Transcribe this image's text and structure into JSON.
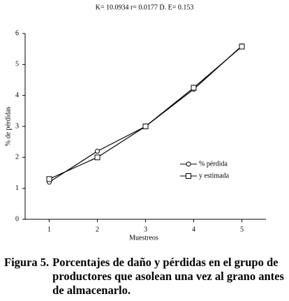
{
  "chart_data": {
    "type": "line",
    "subtitle": "K= 10.0934 r= 0.0177 D. E= 0.153",
    "x_label": "Muestreos",
    "y_label": "% de pérdidas",
    "x": [
      1,
      2,
      3,
      4,
      5
    ],
    "xlim": [
      0.5,
      5.5
    ],
    "xticks": [
      1,
      2,
      3,
      4,
      5
    ],
    "ylim": [
      0,
      6
    ],
    "yticks": [
      0,
      1,
      2,
      3,
      4,
      5,
      6
    ],
    "series": [
      {
        "name": "% pérdida",
        "color": "#000000",
        "marker": "circle",
        "values": [
          1.2,
          2.2,
          3.0,
          4.2,
          5.6
        ]
      },
      {
        "name": "y estimada",
        "color": "#000000",
        "marker": "square",
        "values": [
          1.3,
          2.0,
          3.0,
          4.25,
          5.58
        ]
      }
    ],
    "caption": {
      "label": "Figura 5.",
      "text": "Porcentajes de daño y pérdidas en el grupo de productores que asolean una vez al grano antes de almacenarlo."
    }
  }
}
